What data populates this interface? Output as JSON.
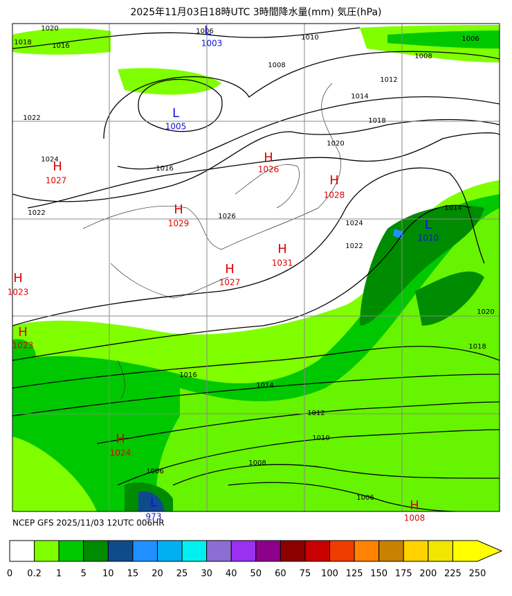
{
  "header": {
    "title": "2025年11月03日18時UTC 3時間降水量(mm) 気圧(hPa)"
  },
  "map": {
    "centers": [
      {
        "symbol": "L",
        "pressure": "1003"
      },
      {
        "symbol": "L",
        "pressure": "1005"
      },
      {
        "symbol": "H",
        "pressure": "1027"
      },
      {
        "symbol": "H",
        "pressure": "1026"
      },
      {
        "symbol": "H",
        "pressure": "1028"
      },
      {
        "symbol": "H",
        "pressure": "1029"
      },
      {
        "symbol": "L",
        "pressure": "1010"
      },
      {
        "symbol": "H",
        "pressure": "1031"
      },
      {
        "symbol": "H",
        "pressure": "1027"
      },
      {
        "symbol": "H",
        "pressure": "1023"
      },
      {
        "symbol": "H",
        "pressure": "1023"
      },
      {
        "symbol": "H",
        "pressure": "1024"
      },
      {
        "symbol": "L",
        "pressure": "973"
      },
      {
        "symbol": "H",
        "pressure": "1008"
      }
    ],
    "isobar_labels": [
      "1020",
      "1018",
      "1016",
      "1006",
      "1010",
      "1008",
      "1008",
      "1006",
      "1012",
      "1014",
      "1018",
      "1020",
      "1016",
      "1024",
      "1022",
      "1022",
      "1026",
      "1024",
      "1022",
      "1014",
      "1020",
      "1018",
      "1016",
      "1014",
      "1012",
      "1010",
      "1008",
      "1006",
      "1006"
    ]
  },
  "footer": {
    "source": "NCEP GFS 2025/11/03 12UTC 006HR"
  },
  "colorbar": {
    "ticks": [
      0,
      0.2,
      1,
      5,
      10,
      15,
      20,
      25,
      30,
      40,
      50,
      60,
      75,
      100,
      125,
      150,
      175,
      200,
      225,
      250
    ],
    "colors": [
      "#ffffff",
      "#80ff00",
      "#00c800",
      "#008c00",
      "#0f4b8c",
      "#1e90ff",
      "#00b0f0",
      "#00f0f0",
      "#8c6ed2",
      "#9b30f0",
      "#8c008c",
      "#8c0000",
      "#c80000",
      "#f03c00",
      "#ff8200",
      "#c88200",
      "#ffd200",
      "#f0e600",
      "#ffff00"
    ]
  }
}
